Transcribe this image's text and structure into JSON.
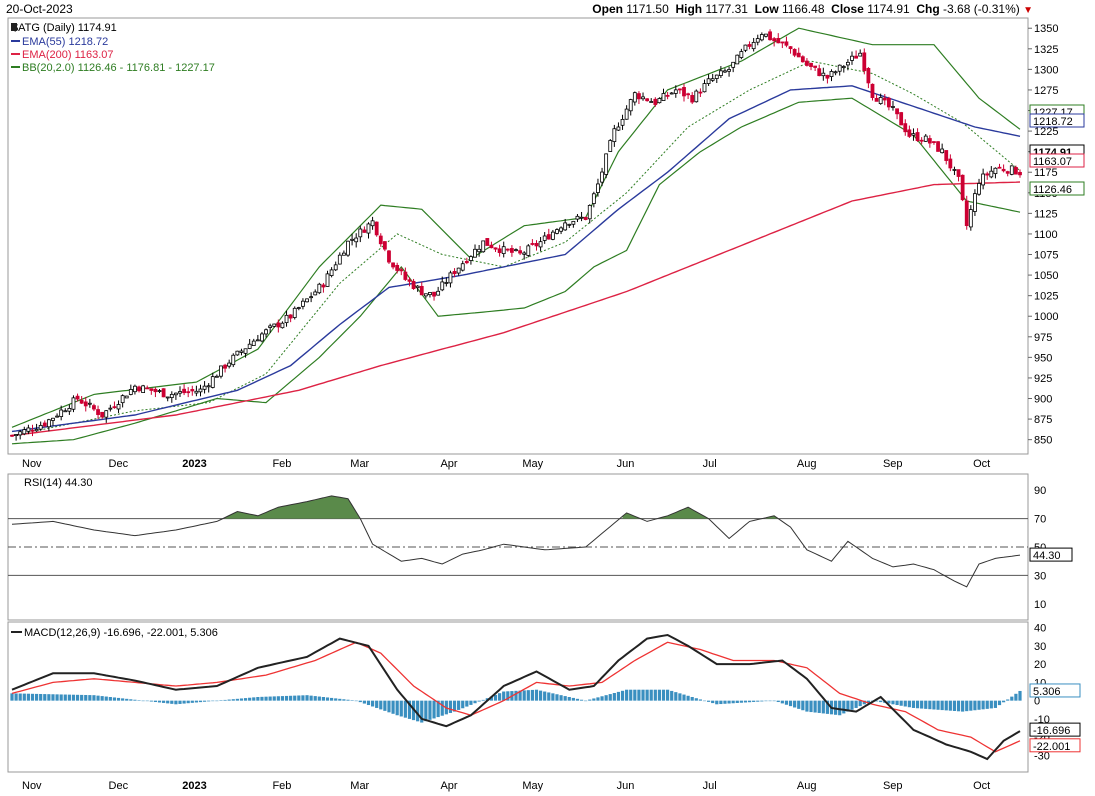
{
  "header": {
    "date": "20-Oct-2023",
    "open_label": "Open",
    "open": "1171.50",
    "high_label": "High",
    "high": "1177.31",
    "low_label": "Low",
    "low": "1166.48",
    "close_label": "Close",
    "close": "1174.91",
    "chg_label": "Chg",
    "chg": "-3.68 (-0.31%)"
  },
  "colors": {
    "up": "#000000",
    "down": "#cc0033",
    "ema55": "#2a3a9c",
    "ema200": "#dd2244",
    "bb": "#2e7d22",
    "bb_mid": "#2e7d22",
    "rsi_fill": "#5a8a4a",
    "macd": "#222222",
    "signal": "#ee3333",
    "hist": "#3a8fc0"
  },
  "chart_data": [
    {
      "type": "candlestick",
      "title": "$ATG (Daily) 1174.91",
      "legend": [
        {
          "name": "EMA(55) 1218.72",
          "color": "#2a3a9c"
        },
        {
          "name": "EMA(200) 1163.07",
          "color": "#dd2244"
        },
        {
          "name": "BB(20,2.0) 1126.46 - 1176.81 - 1227.17",
          "color": "#2e7d22"
        }
      ],
      "legend_placement": "top-left",
      "ylim": [
        835,
        1360
      ],
      "y_ticks": [
        "850",
        "875",
        "900",
        "925",
        "950",
        "975",
        "1000",
        "1025",
        "1050",
        "1075",
        "1100",
        "1125",
        "1150",
        "1175",
        "1200",
        "1225",
        "1250",
        "1275",
        "1300",
        "1325",
        "1350"
      ],
      "x_labels": [
        "Nov",
        "Dec",
        "2023",
        "Feb",
        "Mar",
        "Apr",
        "May",
        "Jun",
        "Jul",
        "Aug",
        "Sep",
        "Oct"
      ],
      "close_path": [
        [
          0,
          855
        ],
        [
          8,
          870
        ],
        [
          16,
          900
        ],
        [
          22,
          880
        ],
        [
          30,
          915
        ],
        [
          38,
          905
        ],
        [
          46,
          910
        ],
        [
          53,
          945
        ],
        [
          60,
          975
        ],
        [
          68,
          1000
        ],
        [
          76,
          1040
        ],
        [
          82,
          1090
        ],
        [
          88,
          1115
        ],
        [
          92,
          1070
        ],
        [
          96,
          1045
        ],
        [
          100,
          1030
        ],
        [
          103,
          1025
        ],
        [
          108,
          1055
        ],
        [
          115,
          1090
        ],
        [
          120,
          1080
        ],
        [
          124,
          1075
        ],
        [
          129,
          1090
        ],
        [
          135,
          1115
        ],
        [
          140,
          1120
        ],
        [
          143,
          1160
        ],
        [
          147,
          1225
        ],
        [
          152,
          1270
        ],
        [
          157,
          1260
        ],
        [
          162,
          1275
        ],
        [
          166,
          1265
        ],
        [
          170,
          1285
        ],
        [
          175,
          1300
        ],
        [
          179,
          1325
        ],
        [
          183,
          1345
        ],
        [
          186,
          1335
        ],
        [
          190,
          1325
        ],
        [
          194,
          1305
        ],
        [
          199,
          1290
        ],
        [
          203,
          1305
        ],
        [
          207,
          1320
        ],
        [
          210,
          1270
        ],
        [
          215,
          1250
        ],
        [
          219,
          1220
        ],
        [
          223,
          1215
        ],
        [
          227,
          1200
        ],
        [
          231,
          1165
        ],
        [
          233,
          1110
        ],
        [
          236,
          1165
        ],
        [
          240,
          1180
        ],
        [
          244,
          1178
        ],
        [
          246,
          1175
        ]
      ],
      "ema55_path": [
        [
          0,
          860
        ],
        [
          30,
          880
        ],
        [
          55,
          910
        ],
        [
          68,
          940
        ],
        [
          80,
          990
        ],
        [
          92,
          1035
        ],
        [
          110,
          1050
        ],
        [
          135,
          1075
        ],
        [
          148,
          1130
        ],
        [
          160,
          1175
        ],
        [
          175,
          1240
        ],
        [
          190,
          1275
        ],
        [
          205,
          1280
        ],
        [
          220,
          1255
        ],
        [
          235,
          1230
        ],
        [
          246,
          1218.72
        ]
      ],
      "ema200_path": [
        [
          0,
          855
        ],
        [
          40,
          880
        ],
        [
          70,
          910
        ],
        [
          90,
          940
        ],
        [
          120,
          980
        ],
        [
          150,
          1030
        ],
        [
          180,
          1090
        ],
        [
          205,
          1140
        ],
        [
          225,
          1160
        ],
        [
          246,
          1163.07
        ]
      ],
      "bb_upper_path": [
        [
          0,
          865
        ],
        [
          20,
          905
        ],
        [
          45,
          920
        ],
        [
          60,
          960
        ],
        [
          75,
          1060
        ],
        [
          90,
          1135
        ],
        [
          100,
          1130
        ],
        [
          112,
          1070
        ],
        [
          125,
          1110
        ],
        [
          140,
          1120
        ],
        [
          148,
          1200
        ],
        [
          160,
          1275
        ],
        [
          178,
          1310
        ],
        [
          192,
          1350
        ],
        [
          210,
          1330
        ],
        [
          225,
          1330
        ],
        [
          236,
          1265
        ],
        [
          246,
          1227.17
        ]
      ],
      "bb_mid_path": [
        [
          0,
          855
        ],
        [
          30,
          885
        ],
        [
          48,
          895
        ],
        [
          62,
          930
        ],
        [
          80,
          1040
        ],
        [
          94,
          1100
        ],
        [
          105,
          1075
        ],
        [
          120,
          1060
        ],
        [
          135,
          1090
        ],
        [
          150,
          1150
        ],
        [
          165,
          1230
        ],
        [
          180,
          1275
        ],
        [
          195,
          1310
        ],
        [
          210,
          1295
        ],
        [
          220,
          1270
        ],
        [
          232,
          1235
        ],
        [
          246,
          1176.81
        ]
      ],
      "bb_lower_path": [
        [
          0,
          845
        ],
        [
          15,
          850
        ],
        [
          30,
          870
        ],
        [
          50,
          900
        ],
        [
          62,
          895
        ],
        [
          75,
          950
        ],
        [
          85,
          1000
        ],
        [
          95,
          1060
        ],
        [
          104,
          1000
        ],
        [
          115,
          1005
        ],
        [
          125,
          1010
        ],
        [
          135,
          1030
        ],
        [
          142,
          1060
        ],
        [
          150,
          1080
        ],
        [
          158,
          1160
        ],
        [
          168,
          1200
        ],
        [
          178,
          1230
        ],
        [
          192,
          1260
        ],
        [
          205,
          1265
        ],
        [
          220,
          1220
        ],
        [
          233,
          1140
        ],
        [
          246,
          1126.46
        ]
      ],
      "value_labels": [
        "1227.17",
        "1218.72",
        "1174.91",
        "1163.07",
        "1126.46"
      ]
    },
    {
      "type": "line",
      "title": "RSI(14) 44.30",
      "ylim": [
        0,
        100
      ],
      "y_ticks": [
        "10",
        "30",
        "50",
        "70",
        "90"
      ],
      "overbought": 70,
      "oversold": 30,
      "path": [
        [
          0,
          66
        ],
        [
          10,
          68
        ],
        [
          20,
          62
        ],
        [
          30,
          58
        ],
        [
          40,
          62
        ],
        [
          50,
          68
        ],
        [
          55,
          75
        ],
        [
          60,
          72
        ],
        [
          65,
          78
        ],
        [
          72,
          82
        ],
        [
          78,
          86
        ],
        [
          82,
          84
        ],
        [
          85,
          70
        ],
        [
          88,
          52
        ],
        [
          95,
          40
        ],
        [
          100,
          42
        ],
        [
          105,
          38
        ],
        [
          110,
          45
        ],
        [
          115,
          48
        ],
        [
          120,
          52
        ],
        [
          130,
          48
        ],
        [
          140,
          50
        ],
        [
          145,
          62
        ],
        [
          150,
          74
        ],
        [
          155,
          68
        ],
        [
          160,
          72
        ],
        [
          165,
          78
        ],
        [
          170,
          70
        ],
        [
          175,
          56
        ],
        [
          180,
          68
        ],
        [
          186,
          72
        ],
        [
          190,
          64
        ],
        [
          194,
          48
        ],
        [
          200,
          40
        ],
        [
          204,
          54
        ],
        [
          210,
          42
        ],
        [
          215,
          36
        ],
        [
          220,
          38
        ],
        [
          225,
          34
        ],
        [
          230,
          26
        ],
        [
          233,
          22
        ],
        [
          236,
          38
        ],
        [
          240,
          42
        ],
        [
          246,
          44.3
        ]
      ],
      "value_label": "44.30"
    },
    {
      "type": "line",
      "title": "MACD(12,26,9) -16.696, -22.001, 5.306",
      "ylim": [
        -38,
        42
      ],
      "y_ticks": [
        "40",
        "30",
        "20",
        "10",
        "0",
        "-10",
        "-20",
        "-30"
      ],
      "macd_path": [
        [
          0,
          6
        ],
        [
          10,
          15
        ],
        [
          20,
          15
        ],
        [
          30,
          11
        ],
        [
          40,
          6
        ],
        [
          50,
          8
        ],
        [
          60,
          18
        ],
        [
          72,
          24
        ],
        [
          80,
          34
        ],
        [
          87,
          30
        ],
        [
          94,
          6
        ],
        [
          100,
          -10
        ],
        [
          106,
          -14
        ],
        [
          112,
          -8
        ],
        [
          120,
          8
        ],
        [
          128,
          16
        ],
        [
          136,
          6
        ],
        [
          142,
          8
        ],
        [
          148,
          22
        ],
        [
          155,
          34
        ],
        [
          160,
          36
        ],
        [
          165,
          30
        ],
        [
          172,
          20
        ],
        [
          180,
          20
        ],
        [
          188,
          22
        ],
        [
          194,
          12
        ],
        [
          200,
          -4
        ],
        [
          206,
          -6
        ],
        [
          212,
          2
        ],
        [
          220,
          -16
        ],
        [
          228,
          -24
        ],
        [
          234,
          -28
        ],
        [
          238,
          -32
        ],
        [
          242,
          -22
        ],
        [
          246,
          -16.696
        ]
      ],
      "signal_path": [
        [
          0,
          4
        ],
        [
          10,
          10
        ],
        [
          20,
          12
        ],
        [
          30,
          10
        ],
        [
          40,
          8
        ],
        [
          50,
          10
        ],
        [
          62,
          14
        ],
        [
          74,
          22
        ],
        [
          84,
          32
        ],
        [
          90,
          26
        ],
        [
          98,
          8
        ],
        [
          106,
          -4
        ],
        [
          112,
          -8
        ],
        [
          120,
          0
        ],
        [
          128,
          10
        ],
        [
          136,
          8
        ],
        [
          144,
          10
        ],
        [
          152,
          22
        ],
        [
          160,
          32
        ],
        [
          168,
          28
        ],
        [
          176,
          22
        ],
        [
          186,
          22
        ],
        [
          194,
          18
        ],
        [
          202,
          4
        ],
        [
          210,
          -2
        ],
        [
          218,
          -6
        ],
        [
          226,
          -16
        ],
        [
          234,
          -20
        ],
        [
          240,
          -28
        ],
        [
          246,
          -22.001
        ]
      ],
      "hist_path": [
        [
          0,
          4
        ],
        [
          20,
          3
        ],
        [
          40,
          -2
        ],
        [
          60,
          2
        ],
        [
          72,
          3
        ],
        [
          84,
          0
        ],
        [
          94,
          -8
        ],
        [
          100,
          -12
        ],
        [
          108,
          -6
        ],
        [
          120,
          5
        ],
        [
          128,
          6
        ],
        [
          140,
          0
        ],
        [
          150,
          6
        ],
        [
          160,
          6
        ],
        [
          172,
          -2
        ],
        [
          186,
          0
        ],
        [
          194,
          -6
        ],
        [
          202,
          -8
        ],
        [
          210,
          0
        ],
        [
          220,
          -4
        ],
        [
          232,
          -6
        ],
        [
          240,
          -4
        ],
        [
          246,
          5.306
        ]
      ],
      "value_labels": [
        "5.306",
        "-16.696",
        "-22.001"
      ]
    }
  ]
}
